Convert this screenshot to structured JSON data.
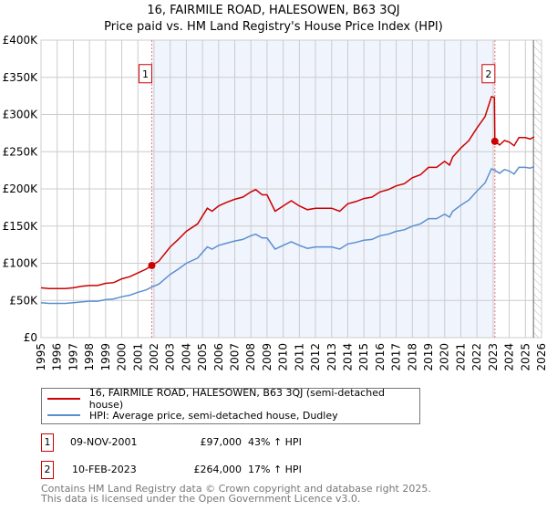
{
  "chart_data": {
    "type": "line",
    "title": "16, FAIRMILE ROAD, HALESOWEN, B63 3QJ",
    "subtitle": "Price paid vs. HM Land Registry's House Price Index (HPI)",
    "xlim": [
      1995,
      2026
    ],
    "ylim": [
      0,
      400000
    ],
    "x_ticks": [
      "1995",
      "1996",
      "1997",
      "1998",
      "1999",
      "2000",
      "2001",
      "2002",
      "2003",
      "2004",
      "2005",
      "2006",
      "2007",
      "2008",
      "2009",
      "2010",
      "2011",
      "2012",
      "2013",
      "2014",
      "2015",
      "2016",
      "2017",
      "2018",
      "2019",
      "2020",
      "2021",
      "2022",
      "2023",
      "2024",
      "2025",
      "2026"
    ],
    "y_ticks": [
      {
        "v": 0,
        "label": "£0"
      },
      {
        "v": 50000,
        "label": "£50K"
      },
      {
        "v": 100000,
        "label": "£100K"
      },
      {
        "v": 150000,
        "label": "£150K"
      },
      {
        "v": 200000,
        "label": "£200K"
      },
      {
        "v": 250000,
        "label": "£250K"
      },
      {
        "v": 300000,
        "label": "£300K"
      },
      {
        "v": 350000,
        "label": "£350K"
      },
      {
        "v": 400000,
        "label": "£400K"
      }
    ],
    "grid": true,
    "ownership_shading": [
      2001.86,
      2023.11
    ],
    "forecast_hatch_from": 2025.5,
    "series": [
      {
        "name": "16, FAIRMILE ROAD, HALESOWEN, B63 3QJ (semi-detached house)",
        "color": "#cc0000",
        "x": [
          1995,
          1995.5,
          1996,
          1996.5,
          1997,
          1997.5,
          1998,
          1998.5,
          1999,
          1999.5,
          2000,
          2000.5,
          2001,
          2001.5,
          2001.86,
          2002.3,
          2003,
          2003.5,
          2004,
          2004.7,
          2005.3,
          2005.6,
          2006,
          2006.5,
          2007,
          2007.5,
          2008,
          2008.3,
          2008.7,
          2009,
          2009.5,
          2010,
          2010.5,
          2011,
          2011.5,
          2012,
          2012.5,
          2013,
          2013.5,
          2014,
          2014.5,
          2015,
          2015.5,
          2016,
          2016.5,
          2017,
          2017.5,
          2018,
          2018.5,
          2019,
          2019.5,
          2020,
          2020.3,
          2020.5,
          2021,
          2021.5,
          2022,
          2022.5,
          2022.9,
          2023.08,
          2023.11,
          2023.4,
          2023.7,
          2024,
          2024.3,
          2024.6,
          2025,
          2025.3,
          2025.55
        ],
        "y": [
          67,
          66,
          66,
          66,
          67,
          69,
          70,
          70,
          73,
          74,
          79,
          82,
          87,
          92,
          97,
          103,
          122,
          132,
          143,
          153,
          174,
          170,
          177,
          182,
          186,
          189,
          196,
          199,
          192,
          192,
          170,
          177,
          184,
          177,
          172,
          174,
          174,
          174,
          170,
          180,
          183,
          187,
          189,
          196,
          199,
          204,
          207,
          215,
          219,
          229,
          229,
          237,
          232,
          243,
          255,
          265,
          282,
          297,
          324,
          323,
          264,
          259,
          265,
          263,
          258,
          269,
          269,
          267,
          270
        ]
      },
      {
        "name": "HPI: Average price, semi-detached house, Dudley",
        "color": "#5b8fd0",
        "x": [
          1995,
          1995.5,
          1996,
          1996.5,
          1997,
          1997.5,
          1998,
          1998.5,
          1999,
          1999.5,
          2000,
          2000.5,
          2001,
          2001.5,
          2001.86,
          2002.3,
          2003,
          2003.5,
          2004,
          2004.7,
          2005.3,
          2005.6,
          2006,
          2006.5,
          2007,
          2007.5,
          2008,
          2008.3,
          2008.7,
          2009,
          2009.5,
          2010,
          2010.5,
          2011,
          2011.5,
          2012,
          2012.5,
          2013,
          2013.5,
          2014,
          2014.5,
          2015,
          2015.5,
          2016,
          2016.5,
          2017,
          2017.5,
          2018,
          2018.5,
          2019,
          2019.5,
          2020,
          2020.3,
          2020.5,
          2021,
          2021.5,
          2022,
          2022.5,
          2022.9,
          2023.11,
          2023.4,
          2023.7,
          2024,
          2024.3,
          2024.6,
          2025,
          2025.3,
          2025.55
        ],
        "y": [
          47,
          46,
          46,
          46,
          47,
          48,
          49,
          49,
          51,
          52,
          55,
          57,
          61,
          64,
          68,
          72,
          85,
          92,
          100,
          107,
          122,
          119,
          124,
          127,
          130,
          132,
          137,
          139,
          134,
          134,
          119,
          124,
          129,
          124,
          120,
          122,
          122,
          122,
          119,
          126,
          128,
          131,
          132,
          137,
          139,
          143,
          145,
          150,
          153,
          160,
          160,
          166,
          162,
          170,
          178,
          185,
          197,
          208,
          227,
          225,
          221,
          226,
          224,
          220,
          229,
          229,
          228,
          230
        ]
      }
    ],
    "y_units": "thousands GBP",
    "sales": [
      {
        "label": "1",
        "x": 2001.86,
        "y": 97,
        "date": "09-NOV-2001",
        "price": "£97,000",
        "hpi": "43% ↑ HPI"
      },
      {
        "label": "2",
        "x": 2023.11,
        "y": 264,
        "date": "10-FEB-2023",
        "price": "£264,000",
        "hpi": "17% ↑ HPI"
      }
    ],
    "legend_placement": "below"
  },
  "footer": {
    "line1": "Contains HM Land Registry data © Crown copyright and database right 2025.",
    "line2": "This data is licensed under the Open Government Licence v3.0."
  }
}
